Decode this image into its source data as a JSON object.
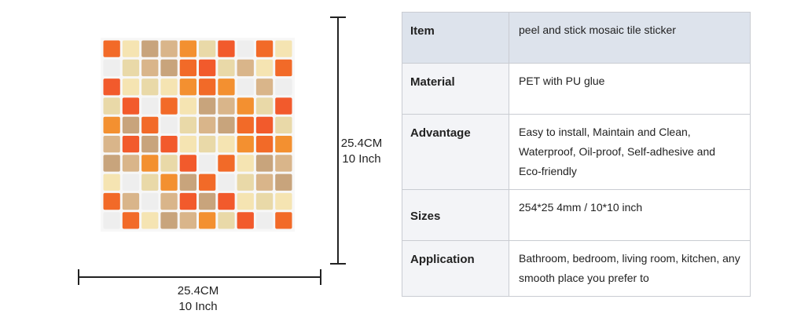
{
  "dimensions": {
    "height": {
      "metric": "25.4CM",
      "imperial": "10 Inch"
    },
    "width": {
      "metric": "25.4CM",
      "imperial": "10 Inch"
    }
  },
  "table": {
    "rows": [
      [
        "Item",
        "peel and stick mosaic tile sticker"
      ],
      [
        "Material",
        "PET with PU glue"
      ],
      [
        "Advantage",
        "Easy to install, Maintain and Clean, Waterproof, Oil-proof, Self-adhesive and Eco-friendly"
      ],
      [
        "Sizes",
        "254*25 4mm / 10*10 inch"
      ],
      [
        "Application",
        "Bathroom, bedroom, living room, kitchen, any smooth place you prefer to"
      ]
    ]
  }
}
